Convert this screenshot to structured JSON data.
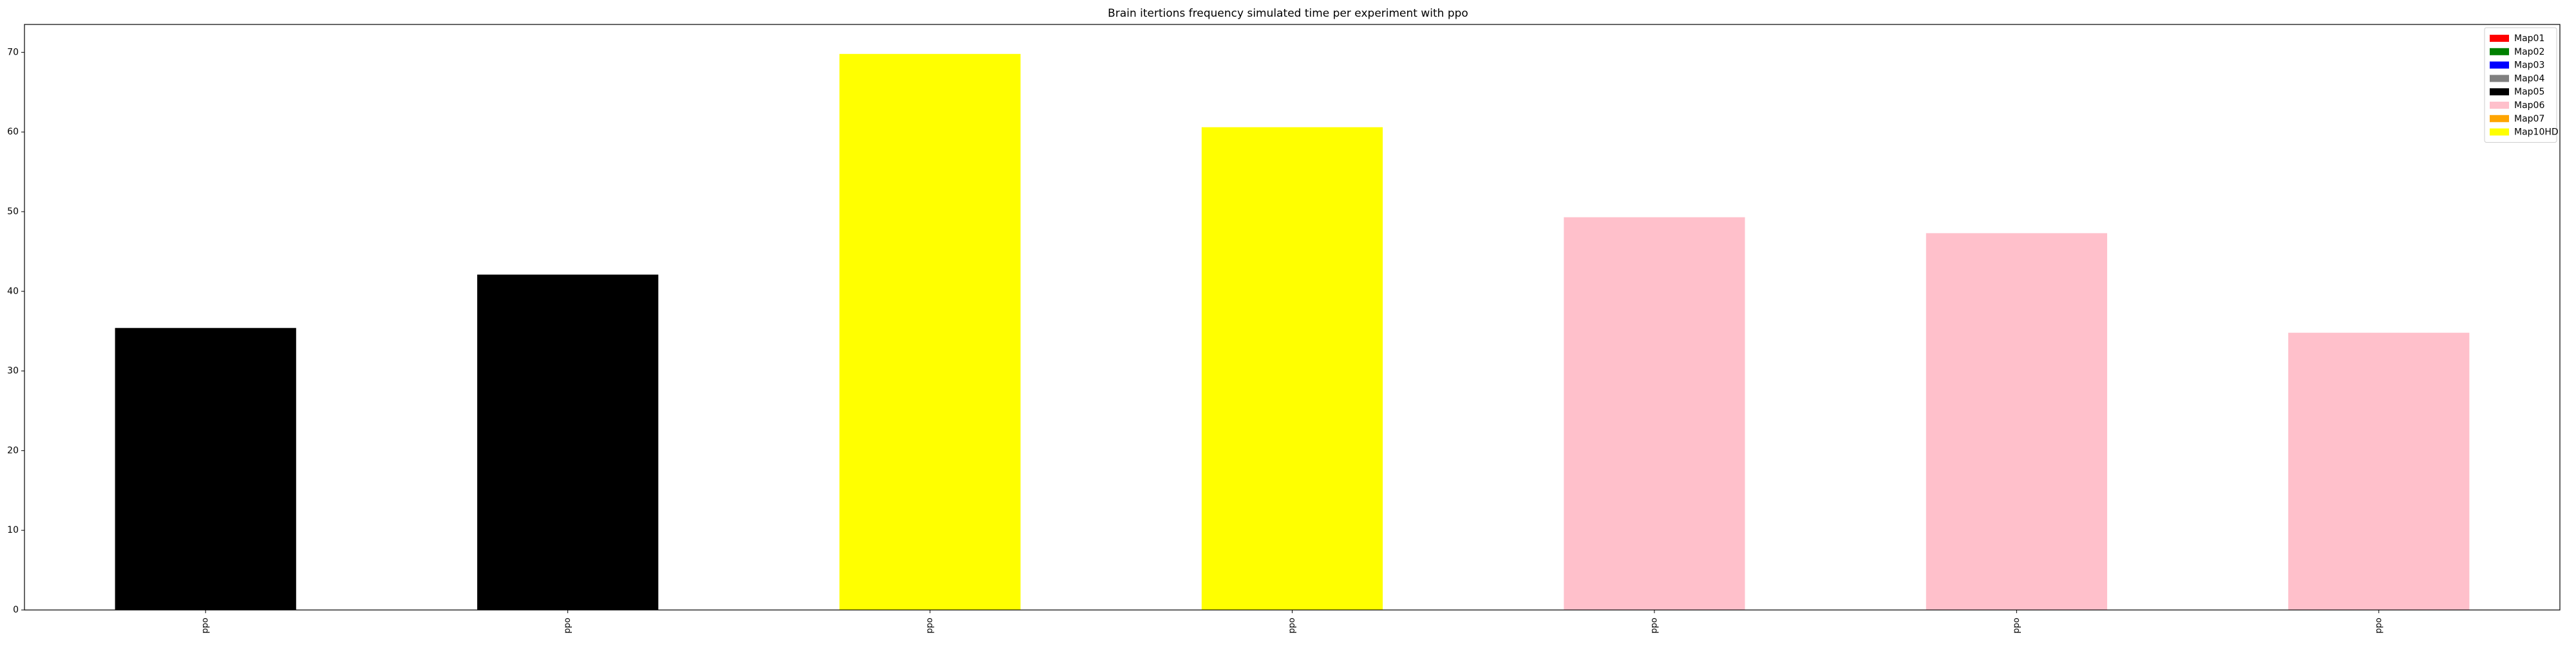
{
  "chart_data": {
    "type": "bar",
    "title": "Brain itertions frequency simulated time per experiment with ppo",
    "xlabel": "",
    "ylabel": "",
    "categories": [
      "ppo",
      "ppo",
      "ppo",
      "ppo",
      "ppo",
      "ppo",
      "ppo"
    ],
    "values": [
      35.4,
      42.1,
      69.8,
      60.6,
      49.3,
      47.3,
      34.8
    ],
    "bar_series": [
      "Map05",
      "Map05",
      "Map10HD",
      "Map10HD",
      "Map06",
      "Map06",
      "Map06"
    ],
    "ylim": [
      0,
      73.5
    ],
    "yticks": [
      0,
      10,
      20,
      30,
      40,
      50,
      60,
      70
    ],
    "grid": false,
    "legend_position": "top-right",
    "legend": [
      {
        "name": "Map01",
        "color": "#ff0000"
      },
      {
        "name": "Map02",
        "color": "#008000"
      },
      {
        "name": "Map03",
        "color": "#0000ff"
      },
      {
        "name": "Map04",
        "color": "#808080"
      },
      {
        "name": "Map05",
        "color": "#000000"
      },
      {
        "name": "Map06",
        "color": "#ffc0cb"
      },
      {
        "name": "Map07",
        "color": "#ffa500"
      },
      {
        "name": "Map10HD",
        "color": "#ffff00"
      }
    ]
  }
}
